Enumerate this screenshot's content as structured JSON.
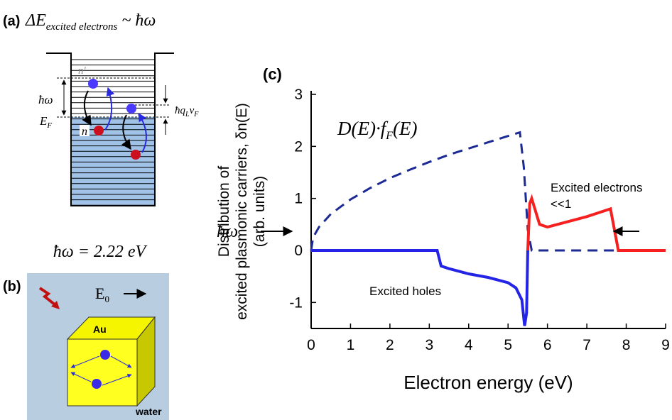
{
  "panel_a": {
    "label": "(a)",
    "formula": {
      "main": "ΔE",
      "sub": "excited electrons",
      "rest": "~ ħω"
    },
    "levels": {
      "n_prime": "n'",
      "n": "n",
      "hw": "ħω",
      "ef": {
        "main": "E",
        "sub": "F"
      },
      "hq": {
        "a": "ħq",
        "a_sub": "L",
        "b": "v",
        "b_sub": "F"
      }
    }
  },
  "photon_energy": "ħω = 2.22 eV",
  "panel_b": {
    "label": "(b)",
    "field": {
      "main": "E",
      "sub": "0"
    },
    "material": "Au",
    "medium": "water"
  },
  "chart_data": {
    "type": "line",
    "panel_label": "(c)",
    "xlabel": "Electron energy (eV)",
    "ylabel": [
      "Distribution of",
      "excited plasmonic carriers, δn(E)",
      "(arb. units)"
    ],
    "xlim": [
      0,
      9
    ],
    "ylim": [
      -1.5,
      3
    ],
    "xticks": [
      0,
      1,
      2,
      3,
      4,
      5,
      6,
      7,
      8,
      9
    ],
    "yticks": [
      -1,
      0,
      1,
      2,
      3
    ],
    "arrow_label": "ħω",
    "series": [
      {
        "label": {
          "a": "D(E)·f",
          "sub": "F",
          "b": "(E)"
        },
        "color": "#1c2a94",
        "dashed": true,
        "x": [
          0,
          0.05,
          0.2,
          0.5,
          1,
          1.5,
          2,
          2.5,
          3,
          3.5,
          4,
          4.5,
          5,
          5.3,
          5.4,
          5.5,
          5.6,
          6,
          7,
          8,
          9
        ],
        "values": [
          0,
          0.25,
          0.45,
          0.7,
          0.98,
          1.2,
          1.39,
          1.55,
          1.7,
          1.84,
          1.96,
          2.08,
          2.2,
          2.27,
          1.6,
          0.4,
          0,
          0,
          0,
          0,
          0
        ]
      },
      {
        "name": "Excited holes",
        "color": "#2424e6",
        "dashed": false,
        "x": [
          0,
          1,
          2,
          3,
          3.2,
          3.3,
          3.5,
          4,
          4.5,
          5,
          5.2,
          5.35,
          5.42,
          5.47,
          5.5
        ],
        "values": [
          0,
          0,
          0,
          0,
          0,
          -0.3,
          -0.35,
          -0.45,
          -0.52,
          -0.62,
          -0.72,
          -0.95,
          -1.45,
          -1.2,
          0
        ]
      },
      {
        "name": "Excited electrons",
        "note": "<<1",
        "color": "#f52020",
        "dashed": false,
        "x": [
          5.5,
          5.55,
          5.6,
          5.8,
          6,
          6.5,
          7,
          7.4,
          7.6,
          7.7,
          7.8,
          8,
          9
        ],
        "values": [
          0,
          0.9,
          1.0,
          0.5,
          0.45,
          0.55,
          0.65,
          0.75,
          0.8,
          0.4,
          0,
          0,
          0
        ]
      }
    ]
  }
}
